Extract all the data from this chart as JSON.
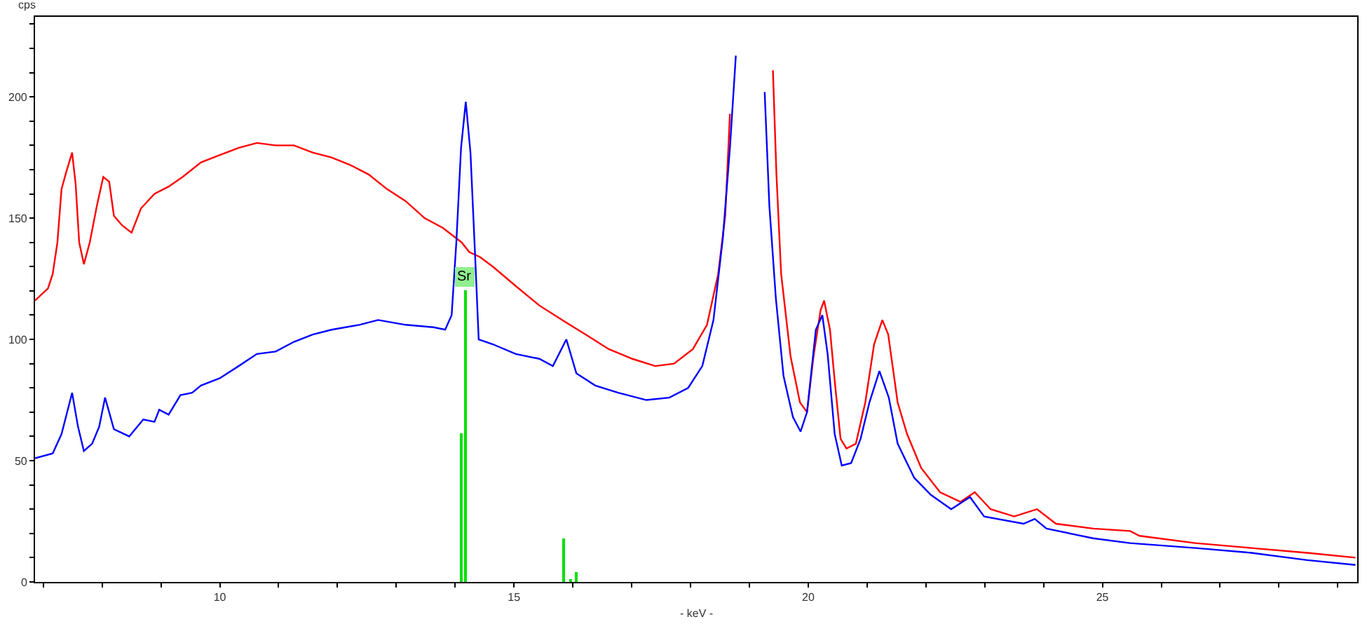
{
  "chart_data": {
    "type": "line",
    "xlabel": "- keV -",
    "ylabel": "cps",
    "xlim": [
      6.86,
      29.33
    ],
    "ylim": [
      0,
      233
    ],
    "xticks": [
      {
        "value": 7,
        "label": null
      },
      {
        "value": 8,
        "label": null
      },
      {
        "value": 9,
        "label": null
      },
      10,
      {
        "value": 11,
        "label": null
      },
      {
        "value": 12,
        "label": null
      },
      {
        "value": 13,
        "label": null
      },
      {
        "value": 14,
        "label": null
      },
      15,
      {
        "value": 16,
        "label": null
      },
      {
        "value": 17,
        "label": null
      },
      {
        "value": 18,
        "label": null
      },
      {
        "value": 19,
        "label": null
      },
      20,
      {
        "value": 21,
        "label": null
      },
      {
        "value": 22,
        "label": null
      },
      {
        "value": 23,
        "label": null
      },
      {
        "value": 24,
        "label": null
      },
      25,
      {
        "value": 26,
        "label": null
      },
      {
        "value": 27,
        "label": null
      },
      {
        "value": 28,
        "label": null
      },
      {
        "value": 29,
        "label": null
      }
    ],
    "yticks": [
      0,
      {
        "value": 10,
        "label": null
      },
      {
        "value": 20,
        "label": null
      },
      {
        "value": 30,
        "label": null
      },
      {
        "value": 40,
        "label": null
      },
      50,
      {
        "value": 60,
        "label": null
      },
      {
        "value": 70,
        "label": null
      },
      {
        "value": 80,
        "label": null
      },
      {
        "value": 90,
        "label": null
      },
      100,
      {
        "value": 110,
        "label": null
      },
      {
        "value": 120,
        "label": null
      },
      {
        "value": 130,
        "label": null
      },
      {
        "value": 140,
        "label": null
      },
      150,
      {
        "value": 160,
        "label": null
      },
      {
        "value": 170,
        "label": null
      },
      {
        "value": 180,
        "label": null
      },
      {
        "value": 190,
        "label": null
      },
      200,
      {
        "value": 210,
        "label": null
      },
      {
        "value": 220,
        "label": null
      },
      {
        "value": 230,
        "label": null
      }
    ],
    "marker": "none",
    "line_style": "solid",
    "series": [
      {
        "color": "#ff0000",
        "x": [
          6.86,
          7.08,
          7.16,
          7.24,
          7.31,
          7.39,
          7.49,
          7.55,
          7.61,
          7.69,
          7.79,
          7.91,
          8.02,
          8.12,
          8.2,
          8.34,
          8.5,
          8.66,
          8.89,
          9.13,
          9.37,
          9.68,
          10.0,
          10.32,
          10.63,
          10.95,
          11.26,
          11.58,
          11.9,
          12.21,
          12.53,
          12.84,
          13.16,
          13.48,
          13.79,
          14.11,
          14.24,
          14.42,
          14.64,
          15.03,
          15.43,
          15.82,
          16.22,
          16.61,
          17.01,
          17.4,
          17.72,
          18.04,
          18.28,
          18.47,
          18.59,
          18.67,
          18.73,
          19.0,
          19.34,
          19.4,
          19.46,
          19.54,
          19.7,
          19.86,
          19.98,
          20.09,
          20.21,
          20.27,
          20.37,
          20.45,
          20.55,
          20.65,
          20.81,
          20.97,
          21.12,
          21.26,
          21.36,
          21.52,
          21.68,
          21.92,
          22.24,
          22.59,
          22.83,
          23.1,
          23.5,
          23.89,
          24.21,
          24.84,
          25.47,
          25.63,
          26.58,
          27.53,
          28.48,
          29.3
        ],
        "values": [
          116,
          121,
          127,
          140,
          162,
          169,
          177,
          164,
          140,
          131,
          140,
          155,
          167,
          165,
          151,
          147,
          144,
          154,
          160,
          163,
          167,
          173,
          176,
          179,
          181,
          180,
          180,
          177,
          175,
          172,
          168,
          162,
          157,
          150,
          146,
          140,
          136,
          134,
          130,
          122,
          114,
          108,
          102,
          96,
          92,
          89,
          90,
          96,
          106,
          127,
          151,
          193,
          null,
          null,
          null,
          211,
          168,
          127,
          93,
          74,
          70,
          93,
          112,
          116,
          104,
          83,
          59,
          55,
          57,
          74,
          98,
          108,
          102,
          74,
          61,
          47,
          37,
          33,
          37,
          30,
          27,
          30,
          24,
          22,
          21,
          19,
          16,
          14,
          12,
          10
        ]
      },
      {
        "color": "#0000ff",
        "x": [
          6.86,
          7.16,
          7.31,
          7.49,
          7.59,
          7.69,
          7.83,
          7.95,
          8.05,
          8.2,
          8.46,
          8.7,
          8.89,
          8.97,
          9.13,
          9.33,
          9.53,
          9.68,
          10.0,
          10.32,
          10.63,
          10.95,
          11.26,
          11.58,
          11.9,
          12.37,
          12.69,
          13.16,
          13.63,
          13.83,
          13.94,
          14.02,
          14.1,
          14.18,
          14.26,
          14.34,
          14.4,
          14.64,
          15.03,
          15.43,
          15.66,
          15.89,
          16.06,
          16.38,
          16.77,
          17.25,
          17.64,
          17.96,
          18.2,
          18.39,
          18.55,
          18.67,
          18.77,
          18.81,
          19.0,
          19.2,
          19.26,
          19.34,
          19.45,
          19.58,
          19.74,
          19.87,
          19.98,
          20.13,
          20.24,
          20.33,
          20.45,
          20.57,
          20.73,
          20.89,
          21.04,
          21.21,
          21.37,
          21.52,
          21.8,
          22.08,
          22.43,
          22.75,
          22.99,
          23.66,
          23.85,
          24.05,
          24.84,
          25.47,
          26.58,
          27.53,
          28.48,
          29.3
        ],
        "values": [
          51,
          53,
          61,
          78,
          64,
          54,
          57,
          64,
          76,
          63,
          60,
          67,
          66,
          71,
          69,
          77,
          78,
          81,
          84,
          89,
          94,
          95,
          99,
          102,
          104,
          106,
          108,
          106,
          105,
          104,
          110,
          140,
          179,
          198,
          177,
          134,
          100,
          98,
          94,
          92,
          89,
          100,
          86,
          81,
          78,
          75,
          76,
          80,
          89,
          108,
          142,
          179,
          217,
          null,
          null,
          null,
          202,
          155,
          117,
          85,
          68,
          62,
          70,
          104,
          110,
          94,
          61,
          48,
          49,
          59,
          74,
          87,
          76,
          57,
          43,
          36,
          30,
          35,
          27,
          24,
          26,
          22,
          18,
          16,
          14,
          12,
          9,
          7
        ]
      },
      {
        "type": "bar",
        "color": "#00e000",
        "x": [
          14.1,
          14.17,
          15.84,
          15.97,
          16.07
        ],
        "values": [
          61,
          120,
          18,
          1,
          4
        ]
      }
    ],
    "annotations": [
      {
        "text": "Sr",
        "x": 14.17,
        "y": 120
      }
    ]
  }
}
